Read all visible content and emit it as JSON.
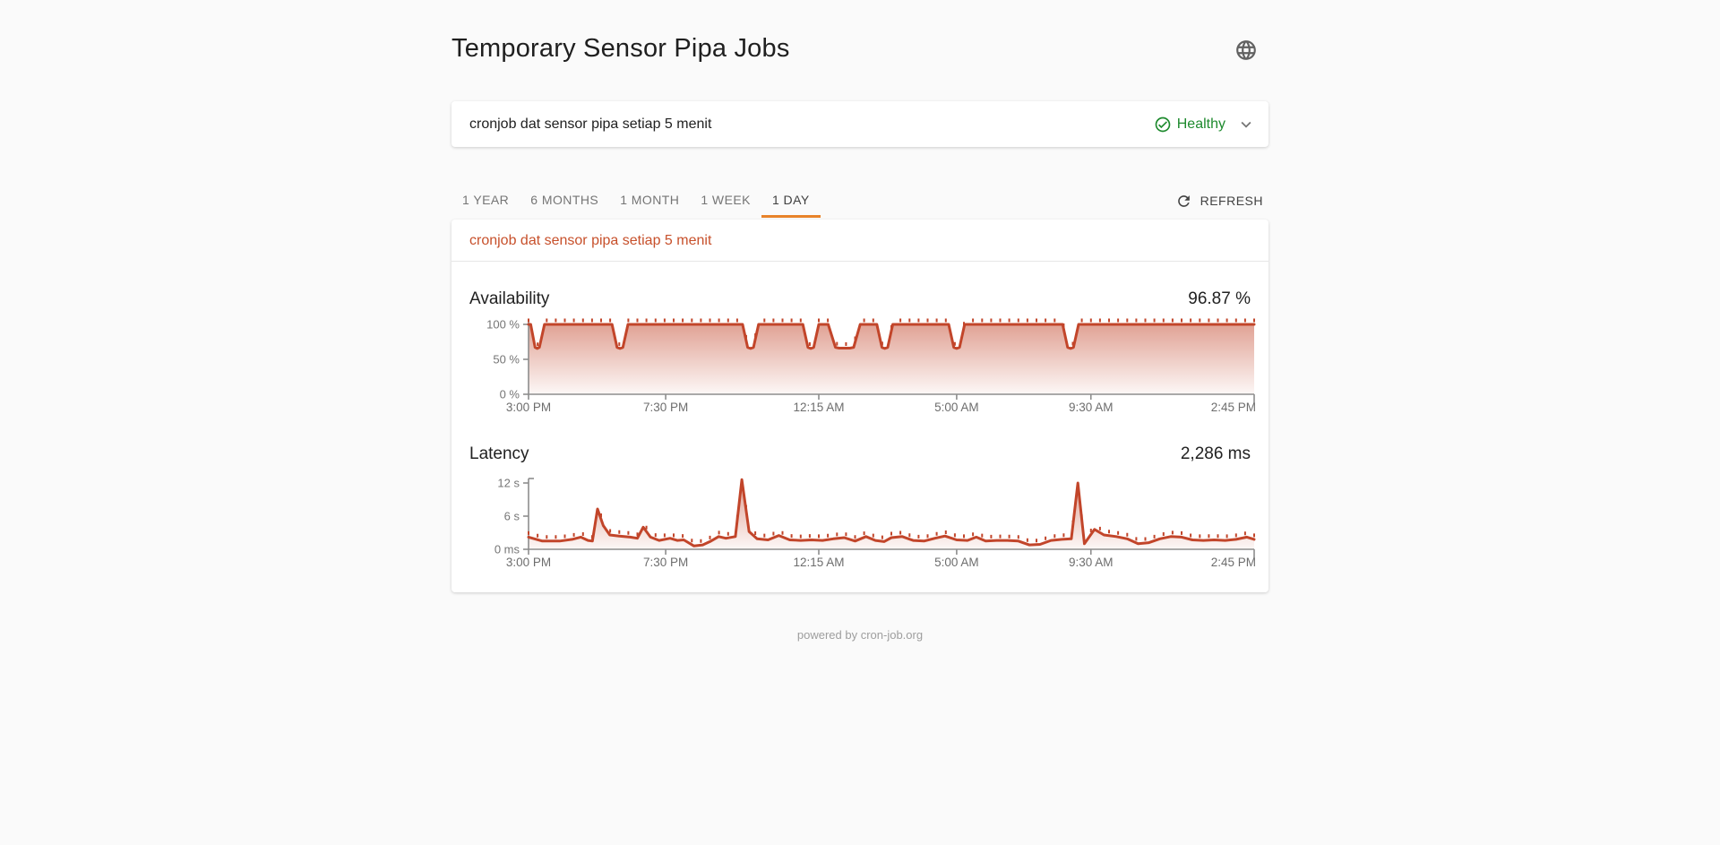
{
  "colors": {
    "chart_line": "#c2452a",
    "tab_accent": "#e8832a",
    "healthy_green": "#1e8a2e",
    "axis_gray": "#8d8d8d",
    "axis_label_gray": "#757575"
  },
  "header": {
    "title": "Temporary Sensor Pipa Jobs",
    "globe_icon": "globe-icon"
  },
  "job_selector": {
    "job_name": "cronjob dat sensor pipa setiap 5 menit",
    "status_label": "Healthy",
    "status_icon": "check-circle-icon",
    "expand_icon": "chevron-down-icon"
  },
  "toolbar": {
    "tabs": [
      {
        "label": "1 YEAR",
        "active": false
      },
      {
        "label": "6 MONTHS",
        "active": false
      },
      {
        "label": "1 MONTH",
        "active": false
      },
      {
        "label": "1 WEEK",
        "active": false
      },
      {
        "label": "1 DAY",
        "active": true
      }
    ],
    "refresh_label": "REFRESH",
    "refresh_icon": "refresh-icon"
  },
  "monitor_card": {
    "title": "cronjob dat sensor pipa setiap 5 menit"
  },
  "footer": {
    "text": "powered by cron-job.org"
  },
  "chart_data": [
    {
      "type": "area",
      "metric": "Availability",
      "summary": "96.87 %",
      "unit": "%",
      "ylim": [
        0,
        100
      ],
      "grid": false,
      "legend": "none",
      "y_ticks": [
        {
          "label": "100 %",
          "value": 100
        },
        {
          "label": "50 %",
          "value": 50
        },
        {
          "label": "0 %",
          "value": 0
        }
      ],
      "x_ticks": [
        {
          "label": "3:00 PM",
          "pos": 0
        },
        {
          "label": "7:30 PM",
          "pos": 0.189
        },
        {
          "label": "12:15 AM",
          "pos": 0.4
        },
        {
          "label": "5:00 AM",
          "pos": 0.59
        },
        {
          "label": "9:30 AM",
          "pos": 0.775
        },
        {
          "label": "2:45 PM",
          "pos": 1
        }
      ],
      "points": [
        [
          0,
          100
        ],
        [
          0.003,
          100
        ],
        [
          0.009,
          67
        ],
        [
          0.012,
          65.5
        ],
        [
          0.015,
          67
        ],
        [
          0.022,
          100
        ],
        [
          0.115,
          100
        ],
        [
          0.122,
          67
        ],
        [
          0.126,
          65.5
        ],
        [
          0.13,
          67
        ],
        [
          0.137,
          100
        ],
        [
          0.295,
          100
        ],
        [
          0.302,
          67
        ],
        [
          0.306,
          65.5
        ],
        [
          0.31,
          67
        ],
        [
          0.317,
          100
        ],
        [
          0.378,
          100
        ],
        [
          0.385,
          67
        ],
        [
          0.389,
          65.5
        ],
        [
          0.393,
          67
        ],
        [
          0.4,
          100
        ],
        [
          0.413,
          100
        ],
        [
          0.423,
          67
        ],
        [
          0.428,
          66
        ],
        [
          0.443,
          66
        ],
        [
          0.448,
          67
        ],
        [
          0.457,
          100
        ],
        [
          0.48,
          100
        ],
        [
          0.487,
          67
        ],
        [
          0.491,
          65.5
        ],
        [
          0.495,
          67
        ],
        [
          0.502,
          100
        ],
        [
          0.579,
          100
        ],
        [
          0.586,
          67
        ],
        [
          0.59,
          65.5
        ],
        [
          0.594,
          67
        ],
        [
          0.601,
          100
        ],
        [
          0.736,
          100
        ],
        [
          0.743,
          67
        ],
        [
          0.747,
          65.5
        ],
        [
          0.751,
          67
        ],
        [
          0.758,
          100
        ],
        [
          1,
          100
        ]
      ]
    },
    {
      "type": "area",
      "metric": "Latency",
      "summary": "2,286 ms",
      "unit": "s",
      "ylim": [
        0,
        12
      ],
      "grid": false,
      "legend": "none",
      "y_ticks": [
        {
          "label": "12 s",
          "value": 12
        },
        {
          "label": "6 s",
          "value": 6
        },
        {
          "label": "0 ms",
          "value": 0
        }
      ],
      "x_ticks": [
        {
          "label": "3:00 PM",
          "pos": 0
        },
        {
          "label": "7:30 PM",
          "pos": 0.189
        },
        {
          "label": "12:15 AM",
          "pos": 0.4
        },
        {
          "label": "5:00 AM",
          "pos": 0.59
        },
        {
          "label": "9:30 AM",
          "pos": 0.775
        },
        {
          "label": "2:45 PM",
          "pos": 1
        }
      ],
      "points": [
        [
          0,
          2.2
        ],
        [
          0.019,
          1.5
        ],
        [
          0.043,
          1.5
        ],
        [
          0.06,
          1.8
        ],
        [
          0.072,
          2.2
        ],
        [
          0.082,
          1.6
        ],
        [
          0.088,
          1.5
        ],
        [
          0.095,
          7.3
        ],
        [
          0.103,
          4.3
        ],
        [
          0.112,
          2.6
        ],
        [
          0.125,
          2.4
        ],
        [
          0.14,
          2.2
        ],
        [
          0.15,
          2.0
        ],
        [
          0.158,
          4.0
        ],
        [
          0.168,
          2.2
        ],
        [
          0.18,
          1.6
        ],
        [
          0.195,
          2.0
        ],
        [
          0.205,
          1.6
        ],
        [
          0.214,
          1.7
        ],
        [
          0.228,
          0.6
        ],
        [
          0.24,
          0.8
        ],
        [
          0.25,
          1.4
        ],
        [
          0.262,
          2.3
        ],
        [
          0.272,
          2.0
        ],
        [
          0.285,
          2.3
        ],
        [
          0.294,
          12.6
        ],
        [
          0.304,
          3.2
        ],
        [
          0.315,
          1.9
        ],
        [
          0.33,
          1.7
        ],
        [
          0.345,
          2.5
        ],
        [
          0.36,
          1.7
        ],
        [
          0.375,
          1.6
        ],
        [
          0.39,
          1.7
        ],
        [
          0.405,
          1.6
        ],
        [
          0.42,
          1.9
        ],
        [
          0.435,
          2.1
        ],
        [
          0.45,
          1.5
        ],
        [
          0.465,
          2.3
        ],
        [
          0.478,
          1.6
        ],
        [
          0.49,
          1.4
        ],
        [
          0.5,
          2.1
        ],
        [
          0.515,
          2.3
        ],
        [
          0.53,
          1.6
        ],
        [
          0.545,
          1.5
        ],
        [
          0.56,
          2.0
        ],
        [
          0.574,
          2.4
        ],
        [
          0.59,
          1.7
        ],
        [
          0.605,
          1.6
        ],
        [
          0.617,
          2.2
        ],
        [
          0.63,
          1.5
        ],
        [
          0.645,
          1.6
        ],
        [
          0.66,
          1.6
        ],
        [
          0.675,
          1.5
        ],
        [
          0.69,
          0.8
        ],
        [
          0.705,
          0.9
        ],
        [
          0.72,
          1.6
        ],
        [
          0.735,
          1.8
        ],
        [
          0.748,
          1.9
        ],
        [
          0.757,
          12.0
        ],
        [
          0.766,
          1.0
        ],
        [
          0.78,
          3.6
        ],
        [
          0.793,
          2.6
        ],
        [
          0.81,
          2.3
        ],
        [
          0.825,
          1.9
        ],
        [
          0.84,
          1.0
        ],
        [
          0.855,
          1.2
        ],
        [
          0.87,
          1.9
        ],
        [
          0.885,
          2.3
        ],
        [
          0.9,
          2.2
        ],
        [
          0.915,
          1.7
        ],
        [
          0.93,
          1.6
        ],
        [
          0.945,
          1.7
        ],
        [
          0.96,
          1.6
        ],
        [
          0.975,
          1.8
        ],
        [
          0.99,
          2.2
        ],
        [
          1,
          1.8
        ]
      ]
    }
  ]
}
